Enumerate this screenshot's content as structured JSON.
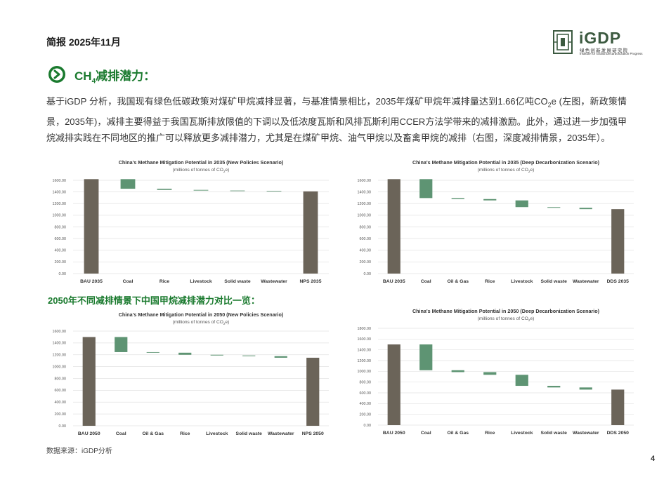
{
  "header": {
    "title": "简报 2025年11月"
  },
  "logo": {
    "name": "iGDP",
    "cn": "绿色创新发展研究院",
    "en": "Institute for Global Decarbonization Progress"
  },
  "section": {
    "heading_pre": "CH",
    "heading_sub": "4",
    "heading_post": "减排潜力："
  },
  "paragraph": {
    "part1": "基于iGDP 分析，我国现有绿色低碳政策对煤矿甲烷减排显著，与基准情景相比，2035年煤矿甲烷年减排量达到1.66亿吨CO",
    "sub": "2",
    "part2": "e (左图，新政策情景，2035年)，减排主要得益于我国瓦斯排放限值的下调以及低浓度瓦斯和风排瓦斯利用CCER方法学带来的减排激励。此外，通过进一步加强甲烷减排实践在不同地区的推广可以释放更多减排潜力，尤其是在煤矿甲烷、油气甲烷以及畜禽甲烷的减排（右图，深度减排情景，2035年）。"
  },
  "subheading": "2050年不同减排情景下中国甲烷减排潜力对比一览：",
  "source": "数据来源：iGDP分析",
  "page_number": "4",
  "colors": {
    "total_bar": "#6b6459",
    "reduction_bar": "#5e9473",
    "grid": "#e2e2e2",
    "accent_green": "#1a7a2e"
  },
  "chart_data": [
    {
      "type": "bar",
      "title": "China's Methane Mitigation Potential in 2035 (New Policies Scenario)",
      "subtitle_pre": "(millions of tonnes of CO",
      "subtitle_sub": "2",
      "subtitle_post": "e)",
      "ylim": [
        0,
        1600
      ],
      "yticks": [
        "0.00",
        "200.00",
        "400.00",
        "600.00",
        "800.00",
        "1000.00",
        "1200.00",
        "1400.00",
        "1600.00"
      ],
      "categories": [
        "BAU 2035",
        "Coal",
        "Rice",
        "Livestock",
        "Solid waste",
        "Wastewater",
        "NPS 2035"
      ],
      "bars": [
        {
          "kind": "total",
          "low": 0,
          "high": 1620
        },
        {
          "kind": "reduction",
          "low": 1455,
          "high": 1620
        },
        {
          "kind": "reduction",
          "low": 1435,
          "high": 1455
        },
        {
          "kind": "reduction",
          "low": 1424,
          "high": 1435
        },
        {
          "kind": "reduction",
          "low": 1417,
          "high": 1424
        },
        {
          "kind": "reduction",
          "low": 1410,
          "high": 1417
        },
        {
          "kind": "total",
          "low": 0,
          "high": 1410
        }
      ]
    },
    {
      "type": "bar",
      "title": "China's Methane Mitigation Potential in 2035 (Deep Decarbonization Scenario)",
      "subtitle_pre": "(millions of tonnes of CO",
      "subtitle_sub": "2",
      "subtitle_post": "e)",
      "ylim": [
        0,
        1600
      ],
      "yticks": [
        "0.00",
        "200.00",
        "400.00",
        "600.00",
        "800.00",
        "1000.00",
        "1200.00",
        "1400.00",
        "1600.00"
      ],
      "categories": [
        "BAU 2035",
        "Coal",
        "Oil & Gas",
        "Rice",
        "Livestock",
        "Solid waste",
        "Wastewater",
        "DDS 2035"
      ],
      "bars": [
        {
          "kind": "total",
          "low": 0,
          "high": 1620
        },
        {
          "kind": "reduction",
          "low": 1295,
          "high": 1620
        },
        {
          "kind": "reduction",
          "low": 1278,
          "high": 1295
        },
        {
          "kind": "reduction",
          "low": 1255,
          "high": 1278
        },
        {
          "kind": "reduction",
          "low": 1140,
          "high": 1255
        },
        {
          "kind": "reduction",
          "low": 1128,
          "high": 1140
        },
        {
          "kind": "reduction",
          "low": 1105,
          "high": 1128
        },
        {
          "kind": "total",
          "low": 0,
          "high": 1105
        }
      ]
    },
    {
      "type": "bar",
      "title": "China's Methane Mitigation Potential in 2050 (New Policies Scenario)",
      "subtitle_pre": "(millions of tonnes of CO",
      "subtitle_sub": "2",
      "subtitle_post": "e)",
      "ylim": [
        0,
        1600
      ],
      "yticks": [
        "0.00",
        "200.00",
        "400.00",
        "600.00",
        "800.00",
        "1000.00",
        "1200.00",
        "1400.00",
        "1600.00"
      ],
      "categories": [
        "BAU 2050",
        "Coal",
        "Oil & Gas",
        "Rice",
        "Livestock",
        "Solid waste",
        "Wastewater",
        "NPS 2050"
      ],
      "bars": [
        {
          "kind": "total",
          "low": 0,
          "high": 1500
        },
        {
          "kind": "reduction",
          "low": 1245,
          "high": 1500
        },
        {
          "kind": "reduction",
          "low": 1235,
          "high": 1245
        },
        {
          "kind": "reduction",
          "low": 1200,
          "high": 1235
        },
        {
          "kind": "reduction",
          "low": 1188,
          "high": 1200
        },
        {
          "kind": "reduction",
          "low": 1176,
          "high": 1188
        },
        {
          "kind": "reduction",
          "low": 1150,
          "high": 1176
        },
        {
          "kind": "total",
          "low": 0,
          "high": 1150
        }
      ]
    },
    {
      "type": "bar",
      "title": "China's Methane Mitigation Potential in 2050 (Deep Decarbonization Scenario)",
      "subtitle_pre": "(millions of tonnes of CO",
      "subtitle_sub": "2",
      "subtitle_post": "e)",
      "ylim": [
        0,
        1800
      ],
      "yticks": [
        "0.00",
        "200.00",
        "400.00",
        "600.00",
        "800.00",
        "1000.00",
        "1200.00",
        "1400.00",
        "1600.00",
        "1800.00"
      ],
      "categories": [
        "BAU 2050",
        "Coal",
        "Oil & Gas",
        "Rice",
        "Livestock",
        "Solid waste",
        "Wastewater",
        "DDS 2050"
      ],
      "bars": [
        {
          "kind": "total",
          "low": 0,
          "high": 1500
        },
        {
          "kind": "reduction",
          "low": 1020,
          "high": 1500
        },
        {
          "kind": "reduction",
          "low": 985,
          "high": 1020
        },
        {
          "kind": "reduction",
          "low": 935,
          "high": 985
        },
        {
          "kind": "reduction",
          "low": 730,
          "high": 935
        },
        {
          "kind": "reduction",
          "low": 700,
          "high": 730
        },
        {
          "kind": "reduction",
          "low": 660,
          "high": 700
        },
        {
          "kind": "total",
          "low": 0,
          "high": 660
        }
      ]
    }
  ]
}
